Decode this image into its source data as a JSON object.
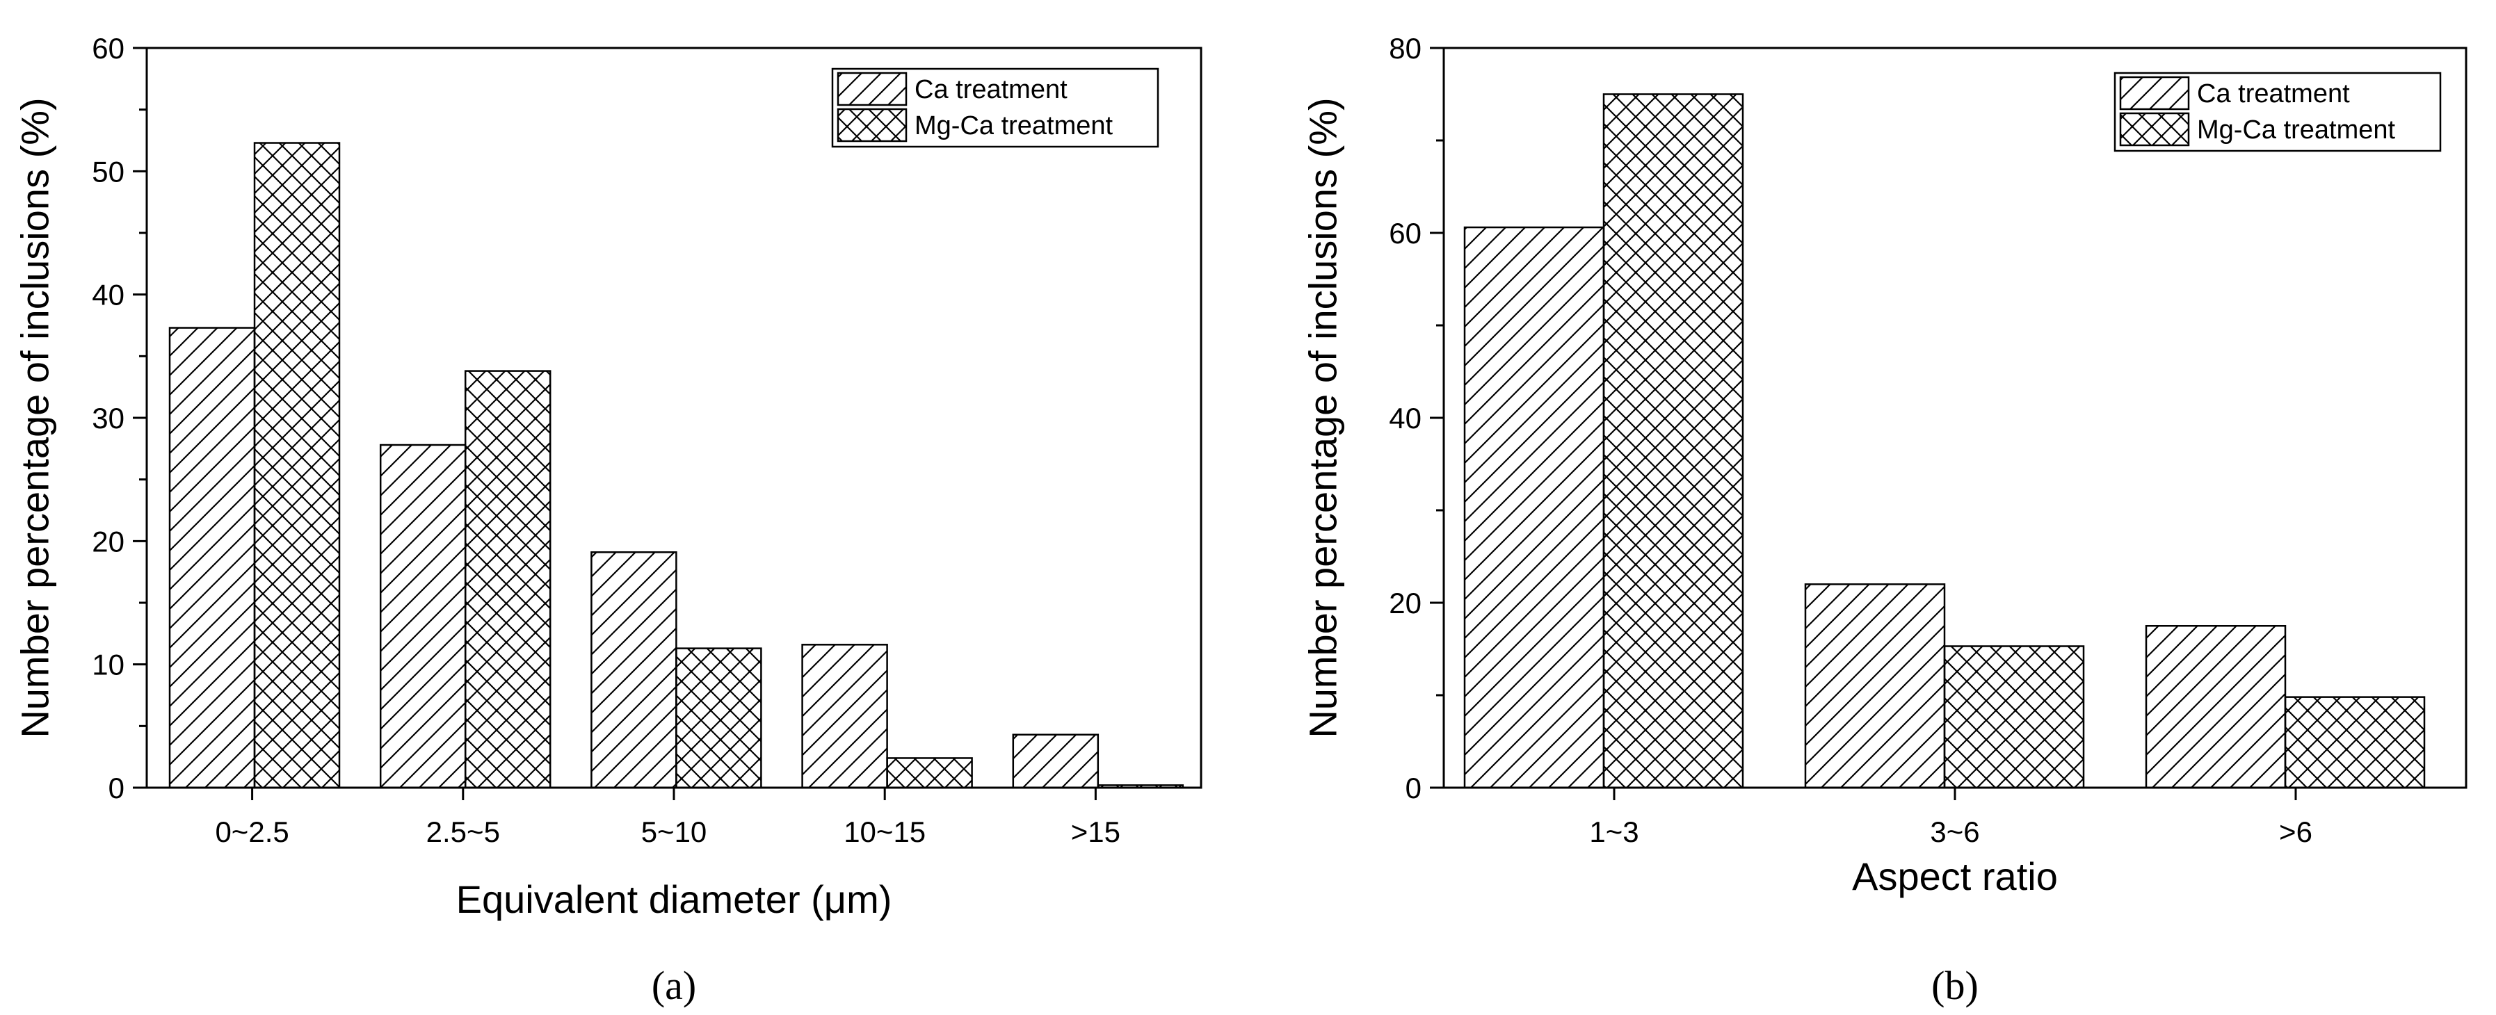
{
  "chart_data": [
    {
      "type": "bar",
      "panel_label": "(a)",
      "xlabel": "Equivalent diameter (μm)",
      "ylabel": "Number percentage of inclusions (%)",
      "categories": [
        "0~2.5",
        "2.5~5",
        "5~10",
        "10~15",
        ">15"
      ],
      "ylim": [
        0,
        60
      ],
      "yticks": [
        0,
        10,
        20,
        30,
        40,
        50,
        60
      ],
      "grid": false,
      "legend_position": "top-right",
      "series": [
        {
          "name": "Ca treatment",
          "pattern": "diagonal-hatch",
          "values": [
            37.3,
            27.8,
            19.1,
            11.6,
            4.3
          ]
        },
        {
          "name": "Mg-Ca treatment",
          "pattern": "cross-hatch",
          "values": [
            52.3,
            33.8,
            11.3,
            2.4,
            0.2
          ]
        }
      ]
    },
    {
      "type": "bar",
      "panel_label": "(b)",
      "xlabel": "Aspect ratio",
      "ylabel": "Number percentage of inclusions (%)",
      "categories": [
        "1~3",
        "3~6",
        ">6"
      ],
      "ylim": [
        0,
        80
      ],
      "yticks": [
        0,
        20,
        40,
        60,
        80
      ],
      "grid": false,
      "legend_position": "top-right",
      "series": [
        {
          "name": "Ca treatment",
          "pattern": "diagonal-hatch",
          "values": [
            60.6,
            22.0,
            17.5
          ]
        },
        {
          "name": "Mg-Ca treatment",
          "pattern": "cross-hatch",
          "values": [
            75.0,
            15.3,
            9.8
          ]
        }
      ]
    }
  ]
}
